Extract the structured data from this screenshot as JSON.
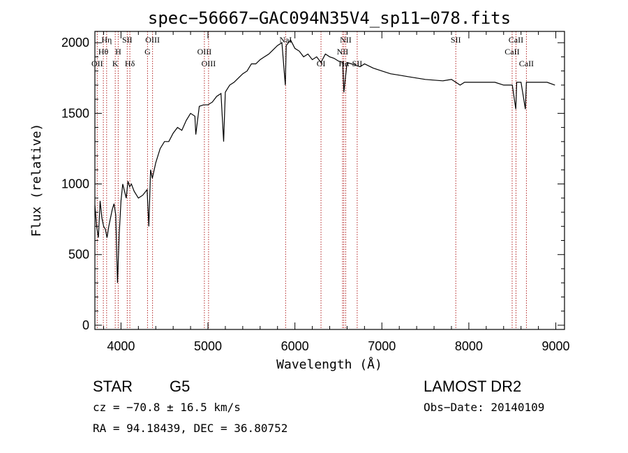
{
  "chart_data": {
    "type": "line",
    "title": "spec−56667−GAC094N35V4_sp11−078.fits",
    "xlabel": "Wavelength (Å)",
    "ylabel": "Flux (relative)",
    "xlim": [
      3700,
      9100
    ],
    "ylim": [
      -30,
      2080
    ],
    "xticks": [
      4000,
      5000,
      6000,
      7000,
      8000,
      9000
    ],
    "yticks": [
      0,
      500,
      1000,
      1500,
      2000
    ],
    "grid": false,
    "series": [
      {
        "x": [
          3700,
          3720,
          3740,
          3760,
          3780,
          3800,
          3820,
          3840,
          3860,
          3880,
          3900,
          3920,
          3940,
          3960,
          3980,
          4000,
          4020,
          4040,
          4060,
          4080,
          4100,
          4120,
          4150,
          4200,
          4250,
          4300,
          4320,
          4340,
          4360,
          4400,
          4450,
          4500,
          4550,
          4600,
          4650,
          4700,
          4750,
          4800,
          4850,
          4860,
          4900,
          4950,
          5000,
          5050,
          5100,
          5150,
          5180,
          5200,
          5250,
          5300,
          5350,
          5400,
          5450,
          5500,
          5550,
          5600,
          5650,
          5700,
          5750,
          5800,
          5850,
          5890,
          5900,
          5950,
          6000,
          6050,
          6100,
          6150,
          6200,
          6250,
          6300,
          6350,
          6400,
          6450,
          6500,
          6550,
          6563,
          6600,
          6650,
          6700,
          6750,
          6800,
          6900,
          7000,
          7100,
          7200,
          7300,
          7400,
          7500,
          7600,
          7700,
          7800,
          7900,
          7950,
          8000,
          8100,
          8200,
          8300,
          8400,
          8500,
          8540,
          8550,
          8600,
          8650,
          8662,
          8700,
          8800,
          8900,
          8990
        ],
        "y": [
          850,
          700,
          620,
          880,
          760,
          700,
          680,
          620,
          700,
          760,
          820,
          860,
          780,
          300,
          650,
          880,
          1000,
          950,
          900,
          1020,
          980,
          1000,
          950,
          900,
          920,
          960,
          700,
          1100,
          1040,
          1150,
          1250,
          1300,
          1300,
          1360,
          1400,
          1380,
          1450,
          1500,
          1480,
          1350,
          1550,
          1560,
          1560,
          1580,
          1620,
          1640,
          1300,
          1650,
          1700,
          1720,
          1750,
          1780,
          1800,
          1850,
          1850,
          1880,
          1900,
          1920,
          1950,
          1980,
          2000,
          1700,
          1980,
          2020,
          1960,
          1940,
          1900,
          1920,
          1880,
          1900,
          1860,
          1920,
          1900,
          1890,
          1870,
          1860,
          1650,
          1860,
          1850,
          1840,
          1830,
          1850,
          1820,
          1800,
          1780,
          1770,
          1760,
          1750,
          1740,
          1735,
          1730,
          1740,
          1700,
          1720,
          1720,
          1720,
          1720,
          1720,
          1700,
          1700,
          1530,
          1720,
          1720,
          1530,
          1720,
          1720,
          1720,
          1720,
          1700
        ]
      }
    ],
    "lines": [
      {
        "name": "Hη",
        "x": 3835,
        "row": 1
      },
      {
        "name": "Hθ",
        "x": 3797,
        "row": 2
      },
      {
        "name": "OII",
        "x": 3727,
        "row": 3
      },
      {
        "name": "SII",
        "x": 4072,
        "row": 1
      },
      {
        "name": "H",
        "x": 3968,
        "row": 2
      },
      {
        "name": "K",
        "x": 3934,
        "row": 3
      },
      {
        "name": "Hδ",
        "x": 4102,
        "row": 3
      },
      {
        "name": "OIII",
        "x": 4363,
        "row": 1
      },
      {
        "name": "G",
        "x": 4305,
        "row": 2
      },
      {
        "name": "OIII",
        "x": 4959,
        "row": 2
      },
      {
        "name": "OIII",
        "x": 5007,
        "row": 3
      },
      {
        "name": "NaI",
        "x": 5893,
        "row": 1
      },
      {
        "name": "NII",
        "x": 6584,
        "row": 1
      },
      {
        "name": "OI",
        "x": 6300,
        "row": 3
      },
      {
        "name": "NII",
        "x": 6548,
        "row": 2
      },
      {
        "name": "Hα",
        "x": 6563,
        "row": 3
      },
      {
        "name": "SII",
        "x": 6716,
        "row": 3
      },
      {
        "name": "SII",
        "x": 7850,
        "row": 1
      },
      {
        "name": "CaII",
        "x": 8542,
        "row": 1
      },
      {
        "name": "CaII",
        "x": 8498,
        "row": 2
      },
      {
        "name": "CaII",
        "x": 8662,
        "row": 3
      }
    ]
  },
  "footer": {
    "object_type": "STAR",
    "subclass": "G5",
    "survey": "LAMOST DR2",
    "redshift": "cz = −70.8 ± 16.5 km/s",
    "obs_date": "Obs−Date: 20140109",
    "coords": "RA =  94.18439, DEC =  36.80752"
  }
}
